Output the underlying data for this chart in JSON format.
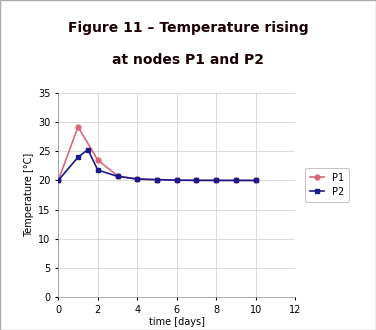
{
  "title_line1": "Figure 11 – Temperature rising",
  "title_line2": "at nodes P1 and P2",
  "title_bg_color": "#F5B800",
  "title_text_color": "#1a0000",
  "xlabel": "time [days]",
  "ylabel": "Temperature [°C]",
  "xlim": [
    0,
    12
  ],
  "ylim": [
    0,
    35
  ],
  "xticks": [
    0,
    2,
    4,
    6,
    8,
    10,
    12
  ],
  "yticks": [
    0,
    5,
    10,
    15,
    20,
    25,
    30,
    35
  ],
  "P1_x": [
    0,
    1,
    2,
    3,
    4,
    5,
    6,
    7,
    8,
    9,
    10
  ],
  "P1_y": [
    20.0,
    29.2,
    23.5,
    20.8,
    20.2,
    20.1,
    20.05,
    20.02,
    20.01,
    20.01,
    20.0
  ],
  "P2_x": [
    0,
    1,
    1.5,
    2,
    3,
    4,
    5,
    6,
    7,
    8,
    9,
    10
  ],
  "P2_y": [
    20.0,
    24.0,
    25.3,
    21.8,
    20.7,
    20.25,
    20.15,
    20.05,
    20.02,
    20.01,
    20.01,
    20.0
  ],
  "P1_color": "#d9697a",
  "P2_color": "#1a1a8c",
  "P1_marker": "o",
  "P2_marker": "s",
  "grid_color": "#cccccc",
  "bg_color": "#ffffff",
  "plot_bg_color": "#ffffff",
  "legend_labels": [
    "P1",
    "P2"
  ],
  "figsize": [
    3.76,
    3.3
  ],
  "dpi": 100,
  "outer_border_color": "#aaaaaa",
  "tick_label_fontsize": 7,
  "axis_label_fontsize": 7,
  "title_fontsize": 10
}
